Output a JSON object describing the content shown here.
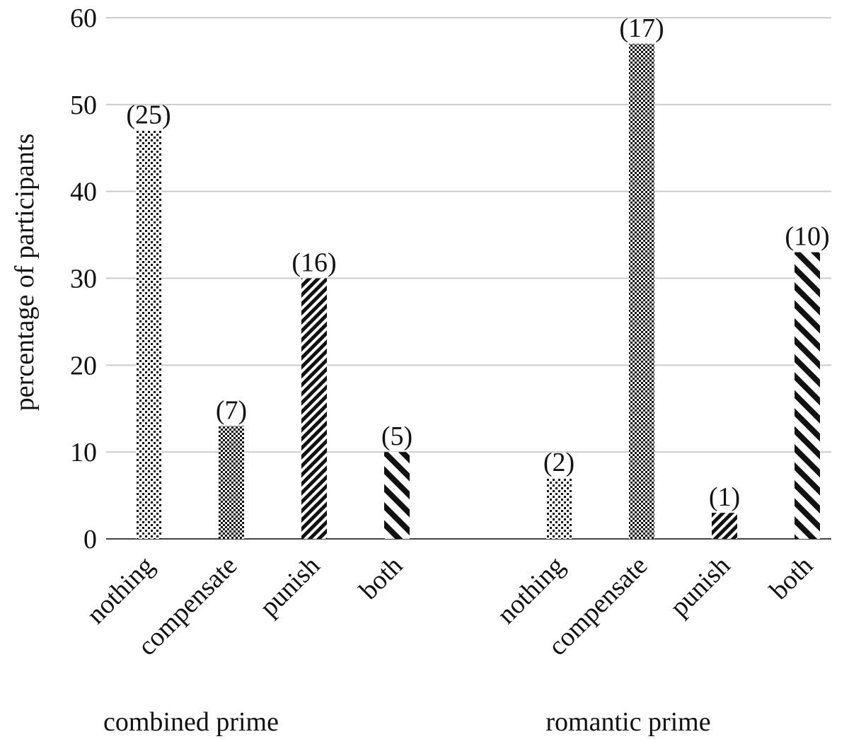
{
  "chart_data": {
    "type": "bar",
    "ylabel": "percentage of participants",
    "ylim": [
      0,
      60
    ],
    "yticks": [
      0,
      10,
      20,
      30,
      40,
      50,
      60
    ],
    "grid": true,
    "groups": [
      {
        "name": "combined prime",
        "bars": [
          {
            "category": "nothing",
            "value": 47,
            "label": "(25)",
            "pattern": "dots"
          },
          {
            "category": "compensate",
            "value": 13,
            "label": "(7)",
            "pattern": "checker"
          },
          {
            "category": "punish",
            "value": 30,
            "label": "(16)",
            "pattern": "diag-fine"
          },
          {
            "category": "both",
            "value": 10,
            "label": "(5)",
            "pattern": "diag-wide"
          }
        ]
      },
      {
        "name": "romantic prime",
        "bars": [
          {
            "category": "nothing",
            "value": 7,
            "label": "(2)",
            "pattern": "dots"
          },
          {
            "category": "compensate",
            "value": 57,
            "label": "(17)",
            "pattern": "checker"
          },
          {
            "category": "punish",
            "value": 3,
            "label": "(1)",
            "pattern": "diag-fine"
          },
          {
            "category": "both",
            "value": 33,
            "label": "(10)",
            "pattern": "diag-wide"
          }
        ]
      }
    ]
  }
}
